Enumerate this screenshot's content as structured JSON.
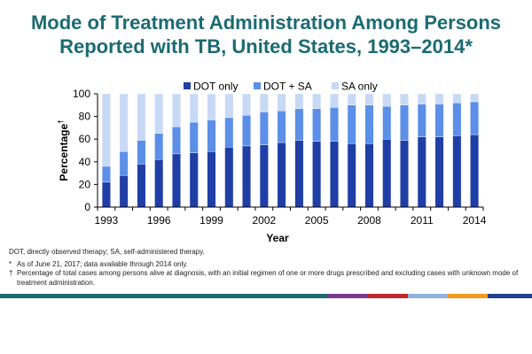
{
  "title_line1": "Mode of Treatment Administration Among Persons",
  "title_line2": "Reported with TB, United States, 1993–2014*",
  "footnotes": {
    "abbrev": "DOT, directly observed therapy; SA, self-administered therapy.",
    "asof_mark": "*",
    "asof": "As of June 21, 2017;  data available through 2014 only.",
    "pct_mark": "†",
    "pct": "Percentage of total cases among persons alive at diagnosis, with an initial regimen of one or more drugs prescribed and excluding cases with unknown mode of treatment administration."
  },
  "colors": {
    "title": "#1b6b72",
    "dot_only": "#1f3ea6",
    "dot_sa": "#5b8fe8",
    "sa_only": "#c8d9f5",
    "bar_segments": [
      "#1b6b72",
      "#1b6b72",
      "#1b6b72",
      "#1b6b72",
      "#1b6b72",
      "#7a3b8f",
      "#c0282d",
      "#8fb3db",
      "#f39a1e",
      "#1f3f8f"
    ]
  },
  "chart_data": {
    "type": "bar",
    "stacked": true,
    "x": [
      1993,
      1994,
      1995,
      1996,
      1997,
      1998,
      1999,
      2000,
      2001,
      2002,
      2003,
      2004,
      2005,
      2006,
      2007,
      2008,
      2009,
      2010,
      2011,
      2012,
      2013,
      2014
    ],
    "x_tick_labels": [
      "1993",
      "1996",
      "1999",
      "2002",
      "2005",
      "2008",
      "2011",
      "2014"
    ],
    "x_tick_values": [
      1993,
      1996,
      1999,
      2002,
      2005,
      2008,
      2011,
      2014
    ],
    "series": [
      {
        "name": "DOT only",
        "values": [
          22,
          28,
          38,
          42,
          47,
          48,
          49,
          53,
          54,
          55,
          57,
          59,
          58,
          58,
          56,
          56,
          60,
          59,
          62,
          62,
          63,
          64
        ]
      },
      {
        "name": "DOT + SA",
        "values": [
          14,
          21,
          21,
          23,
          24,
          27,
          28,
          26,
          27,
          29,
          28,
          28,
          29,
          30,
          34,
          34,
          29,
          31,
          29,
          29,
          29,
          29
        ]
      },
      {
        "name": "SA only",
        "values": [
          64,
          51,
          41,
          35,
          29,
          25,
          23,
          21,
          19,
          16,
          15,
          13,
          13,
          12,
          10,
          10,
          11,
          10,
          9,
          9,
          8,
          7
        ]
      }
    ],
    "xlabel": "Year",
    "ylabel": "Percentage",
    "ylabel_mark": "†",
    "ylim": [
      0,
      100
    ],
    "y_ticks": [
      0,
      20,
      40,
      60,
      80,
      100
    ],
    "legend_position": "top-right",
    "grid": false
  }
}
